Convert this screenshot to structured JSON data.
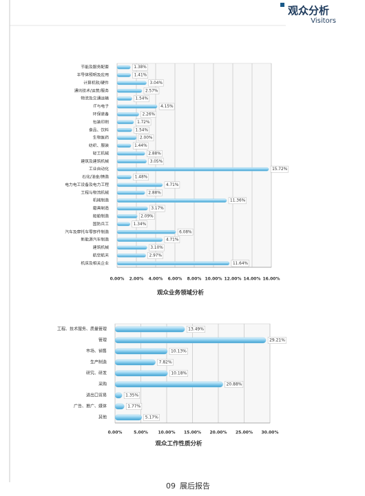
{
  "header": {
    "title": "观众分析",
    "subtitle": "Visitors"
  },
  "footer": {
    "page": "09",
    "text": "展后报告"
  },
  "chart_data": [
    {
      "type": "bar",
      "orientation": "horizontal",
      "title": "观众业务领域分析",
      "categories": [
        "节能及服务配套",
        "半导体照明及应用",
        "计算机软/硬件",
        "通讯技术/运营/服务",
        "物流及交通运输",
        "IT与电子",
        "环保装备",
        "包装印刷",
        "食品、饮料",
        "生物医药",
        "纺织、服装",
        "轻工机械",
        "建筑及建筑机械",
        "工业自动化",
        "石化/油金/铸造",
        "电力电工设备及电力工程",
        "工程与物流机械",
        "机械制造",
        "磨具制造",
        "船舶制造",
        "国防兵工",
        "汽车及摩托车零部件制造",
        "新能源汽车制造",
        "建筑机械",
        "航空航天",
        "机床及相关企业"
      ],
      "values": [
        1.38,
        1.41,
        3.04,
        2.57,
        1.54,
        4.15,
        2.26,
        1.72,
        1.54,
        2.0,
        1.44,
        2.88,
        3.05,
        15.72,
        1.48,
        4.71,
        2.88,
        11.36,
        3.17,
        2.09,
        1.34,
        6.08,
        4.71,
        3.1,
        2.97,
        11.64
      ],
      "value_labels": [
        "1.38%",
        "1.41%",
        "3.04%",
        "2.57%",
        "1.54%",
        "4.15%",
        "2.26%",
        "1.72%",
        "1.54%",
        "2.00%",
        "1.44%",
        "2.88%",
        "3.05%",
        "15.72%",
        "1.48%",
        "4.71%",
        "2.88%",
        "11.36%",
        "3.17%",
        "2.09%",
        "1.34%",
        "6.08%",
        "4.71%",
        "3.10%",
        "2.97%",
        "11.64%"
      ],
      "color": "#7ec8ea",
      "xlim": [
        0,
        16
      ],
      "xticks": [
        {
          "value": 0,
          "label": "0.00%"
        },
        {
          "value": 2,
          "label": "2.00%"
        },
        {
          "value": 4,
          "label": "4.00%"
        },
        {
          "value": 6,
          "label": "6.00%"
        },
        {
          "value": 8,
          "label": "8.00%"
        },
        {
          "value": 10,
          "label": "10.00%"
        },
        {
          "value": 12,
          "label": "12.00%"
        },
        {
          "value": 14,
          "label": "14.00%"
        },
        {
          "value": 16,
          "label": "16.00%"
        }
      ],
      "grid": true
    },
    {
      "type": "bar",
      "orientation": "horizontal",
      "title": "观众工作性质分析",
      "categories": [
        "工程、技术服务、质量管理",
        "管理",
        "市场、销售",
        "生产制造",
        "研究、研发",
        "采购",
        "进出口贸易",
        "广告、推广、媒体",
        "其他"
      ],
      "values": [
        13.49,
        29.21,
        10.13,
        7.82,
        10.18,
        20.88,
        1.35,
        1.77,
        5.17
      ],
      "value_labels": [
        "13.49%",
        "29.21%",
        "10.13%",
        "7.82%",
        "10.18%",
        "20.88%",
        "1.35%",
        "1.77%",
        "5.17%"
      ],
      "color": "#7ec8ea",
      "xlim": [
        0,
        30
      ],
      "xticks": [
        {
          "value": 0,
          "label": "0.00%"
        },
        {
          "value": 5,
          "label": "5.00%"
        },
        {
          "value": 10,
          "label": "10.00%"
        },
        {
          "value": 15,
          "label": "15.00%"
        },
        {
          "value": 20,
          "label": "20.00%"
        },
        {
          "value": 25,
          "label": "25.00%"
        },
        {
          "value": 30,
          "label": "30.00%"
        }
      ],
      "grid": true
    }
  ]
}
